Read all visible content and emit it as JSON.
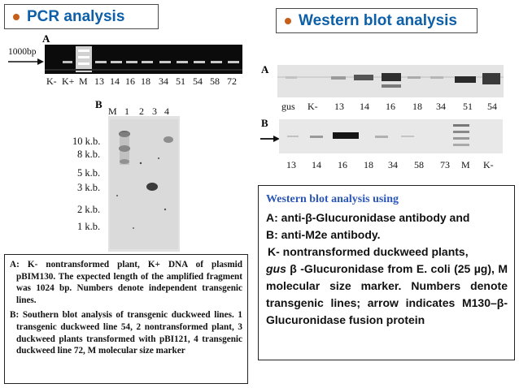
{
  "pcr": {
    "title": "PCR analysis",
    "panel_a": {
      "letter": "A",
      "marker": "1000bp",
      "lanes": [
        "K-",
        "K+",
        "M",
        "13",
        "14",
        "16",
        "18",
        "34",
        "51",
        "54",
        "58",
        "72"
      ]
    },
    "panel_b": {
      "letter": "B",
      "lanes": [
        "M",
        "1",
        "2",
        "3",
        "4"
      ],
      "sizes": [
        "10 k.b.",
        "8 k.b.",
        "5 k.b.",
        "3 k.b.",
        "2 k.b.",
        "1 k.b."
      ]
    },
    "caption": {
      "a": "A: K- nontransformed plant, K+ DNA of plasmid pBIM130. The expected length of the amplified fragment was 1024 bp. Numbers denote independent transgenic lines.",
      "b": "B: Southern blot analysis of transgenic duckweed lines. 1 transgenic duckweed line 54, 2 nontransformed plant, 3 duckweed plants transformed with pBI121, 4 transgenic duckweed line 72, M molecular size marker"
    }
  },
  "western": {
    "title": "Western blot analysis",
    "panel_a": {
      "letter": "A",
      "lanes": [
        "gus",
        "K-",
        "13",
        "14",
        "16",
        "18",
        "34",
        "51",
        "54"
      ]
    },
    "panel_b": {
      "letter": "B",
      "lanes": [
        "13",
        "14",
        "16",
        "18",
        "34",
        "58",
        "73",
        "M",
        "K-"
      ]
    },
    "caption": {
      "heading": "Western blot analysis using",
      "line_a": "A:  anti-β-Glucuronidase antibody and",
      "line_b": "B:  anti-M2e antibody.",
      "line_k": "K- nontransformed duckweed plants,",
      "gus": "gus",
      "rest": " β -Glucuronidase from E. coli (25 µg), M molecular size marker. Numbers denote transgenic lines; arrow indicates M130–β-Glucuronidase fusion protein"
    }
  },
  "colors": {
    "title_text": "#0d5fa8",
    "bullet": "#c65f1a",
    "caption_heading": "#2a56b8"
  }
}
